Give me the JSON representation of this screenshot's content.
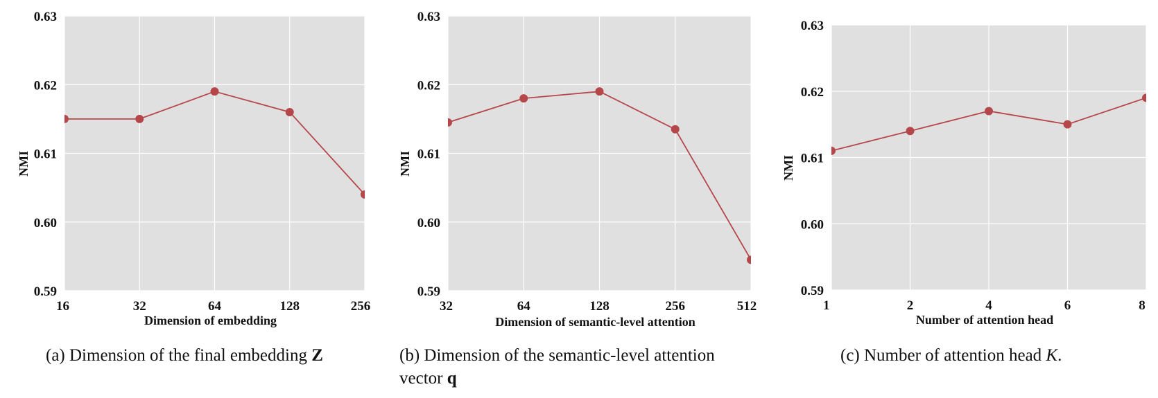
{
  "colors": {
    "line": "#b5474b",
    "panel_bg": "#e0e0e0",
    "grid": "#ffffff"
  },
  "chart_data": [
    {
      "type": "line",
      "x_categories": [
        "16",
        "32",
        "64",
        "128",
        "256"
      ],
      "values": [
        0.615,
        0.615,
        0.619,
        0.616,
        0.604
      ],
      "ylim": [
        0.59,
        0.63
      ],
      "yticks": [
        "0.59",
        "0.60",
        "0.61",
        "0.62",
        "0.63"
      ],
      "xlabel": "Dimension of embedding",
      "ylabel": "NMI",
      "grid": true,
      "caption": {
        "prefix": "(a)  Dimension of the final embedding ",
        "symbol": "Z",
        "suffix": ""
      }
    },
    {
      "type": "line",
      "x_categories": [
        "32",
        "64",
        "128",
        "256",
        "512"
      ],
      "values": [
        0.6145,
        0.618,
        0.619,
        0.6135,
        0.5945
      ],
      "ylim": [
        0.59,
        0.63
      ],
      "yticks": [
        "0.59",
        "0.60",
        "0.61",
        "0.62",
        "0.63"
      ],
      "xlabel": "Dimension of semantic-level attention",
      "ylabel": "NMI",
      "grid": true,
      "caption": {
        "prefix": "(b)  Dimension of the semantic-level attention",
        "line2_prefix": "vector ",
        "symbol": "q",
        "suffix": ""
      }
    },
    {
      "type": "line",
      "x_categories": [
        "1",
        "2",
        "4",
        "6",
        "8"
      ],
      "values": [
        0.611,
        0.614,
        0.617,
        0.615,
        0.619
      ],
      "ylim": [
        0.59,
        0.63
      ],
      "yticks": [
        "0.59",
        "0.60",
        "0.61",
        "0.62",
        "0.63"
      ],
      "xlabel": "Number of attention head",
      "ylabel": "NMI",
      "grid": true,
      "caption": {
        "prefix": "(c)  Number of attention head ",
        "symbol": "K",
        "suffix": "."
      }
    }
  ]
}
